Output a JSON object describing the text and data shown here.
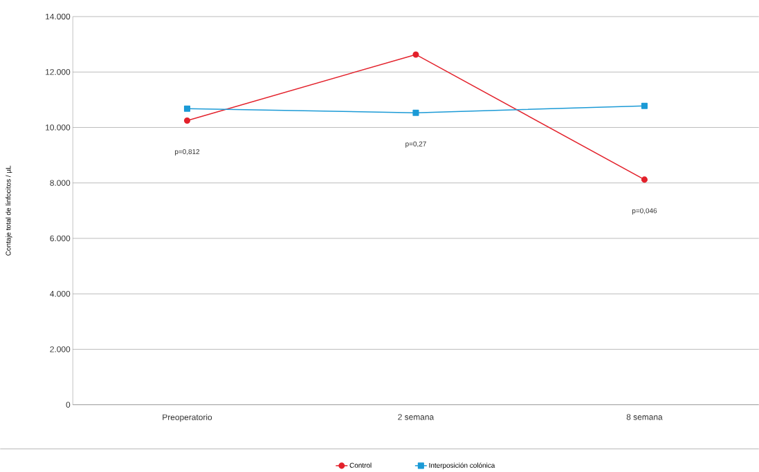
{
  "chart_data": {
    "type": "line",
    "ylabel": "Contaje total de linfocitos / µL",
    "categories": [
      "Preoperatorio",
      "2 semana",
      "8 semana"
    ],
    "series": [
      {
        "name": "Control",
        "color": "#e3212b",
        "marker": "circle",
        "values": [
          10250,
          12630,
          8120
        ]
      },
      {
        "name": "Interposición colónica",
        "color": "#1b9ad6",
        "marker": "square",
        "values": [
          10680,
          10530,
          10780
        ]
      }
    ],
    "ylim": [
      0,
      14000
    ],
    "yticks": [
      {
        "value": 0,
        "label": "0"
      },
      {
        "value": 2000,
        "label": "2.000"
      },
      {
        "value": 4000,
        "label": "4.000"
      },
      {
        "value": 6000,
        "label": "6.000"
      },
      {
        "value": 8000,
        "label": "8.000"
      },
      {
        "value": 10000,
        "label": "10.000"
      },
      {
        "value": 12000,
        "label": "12.000"
      },
      {
        "value": 14000,
        "label": "14.000"
      }
    ],
    "grid": "y",
    "legend": "bottom",
    "annotations": [
      "p=0,812",
      "p=0,27",
      "p=0,046"
    ]
  }
}
